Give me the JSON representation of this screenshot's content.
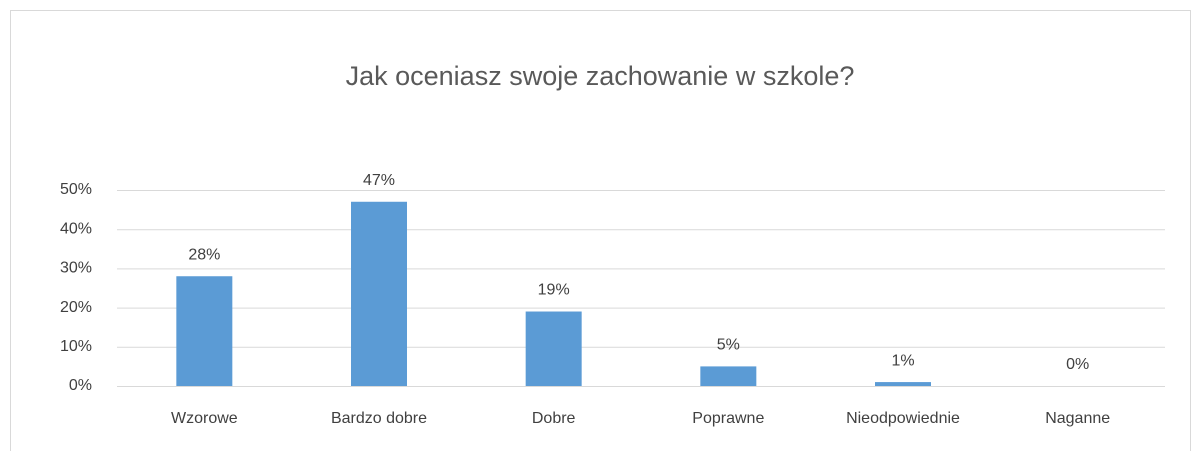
{
  "chart_data": {
    "type": "bar",
    "title": "Jak oceniasz swoje zachowanie w szkole?",
    "categories": [
      "Wzorowe",
      "Bardzo dobre",
      "Dobre",
      "Poprawne",
      "Nieodpowiednie",
      "Naganne"
    ],
    "values": [
      28,
      47,
      19,
      5,
      1,
      0
    ],
    "value_labels": [
      "28%",
      "47%",
      "19%",
      "5%",
      "1%",
      "0%"
    ],
    "color": "#5b9bd5",
    "ylim": [
      0,
      50
    ],
    "yticks": [
      {
        "value": 0,
        "label": "0%"
      },
      {
        "value": 10,
        "label": "10%"
      },
      {
        "value": 20,
        "label": "20%"
      },
      {
        "value": 30,
        "label": "30%"
      },
      {
        "value": 40,
        "label": "40%"
      },
      {
        "value": 50,
        "label": "50%"
      }
    ],
    "grid": true
  }
}
